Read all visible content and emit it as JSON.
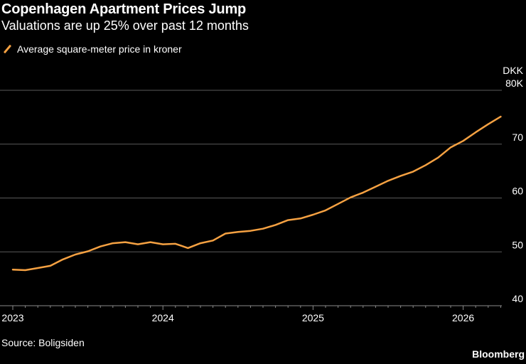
{
  "title": "Copenhagen Apartment Prices Jump",
  "subtitle": "Valuations are up 25% over past 12 months",
  "source": "Source: Boligsiden",
  "brand": "Bloomberg",
  "chart_data": {
    "type": "line",
    "series": [
      {
        "name": "Average square-meter price in kroner",
        "color": "#f5a142",
        "x": [
          "2023-01",
          "2023-02",
          "2023-03",
          "2023-04",
          "2023-05",
          "2023-06",
          "2023-07",
          "2023-08",
          "2023-09",
          "2023-10",
          "2023-11",
          "2023-12",
          "2024-01",
          "2024-02",
          "2024-03",
          "2024-04",
          "2024-05",
          "2024-06",
          "2024-07",
          "2024-08",
          "2024-09",
          "2024-10",
          "2024-11",
          "2024-12",
          "2025-01",
          "2025-02",
          "2025-03",
          "2025-04",
          "2025-05",
          "2025-06",
          "2025-07",
          "2025-08",
          "2025-09",
          "2025-10",
          "2025-11",
          "2025-12",
          "2026-01",
          "2026-02",
          "2026-03",
          "2026-04"
        ],
        "values": [
          46.7,
          46.6,
          47.0,
          47.4,
          48.6,
          49.5,
          50.1,
          51.0,
          51.6,
          51.8,
          51.4,
          51.8,
          51.4,
          51.5,
          50.7,
          51.6,
          52.1,
          53.4,
          53.7,
          53.9,
          54.3,
          55.0,
          55.9,
          56.2,
          56.9,
          57.7,
          58.9,
          60.1,
          61.0,
          62.1,
          63.2,
          64.1,
          64.9,
          66.1,
          67.5,
          69.4,
          70.6,
          72.2,
          73.7,
          75.1
        ]
      }
    ],
    "y_unit": "DKK",
    "y_ticks": [
      {
        "value": 40,
        "label": "40"
      },
      {
        "value": 50,
        "label": "50"
      },
      {
        "value": 60,
        "label": "60"
      },
      {
        "value": 70,
        "label": "70"
      },
      {
        "value": 80,
        "label": "80K"
      }
    ],
    "x_ticks": [
      {
        "date": "2023-01",
        "label": "2023"
      },
      {
        "date": "2024-01",
        "label": "2024"
      },
      {
        "date": "2025-01",
        "label": "2025"
      },
      {
        "date": "2026-01",
        "label": "2026"
      }
    ],
    "ylim": [
      40,
      80
    ],
    "y_axis_side": "right",
    "grid": "horizontal",
    "legend_placement": "top-left"
  }
}
